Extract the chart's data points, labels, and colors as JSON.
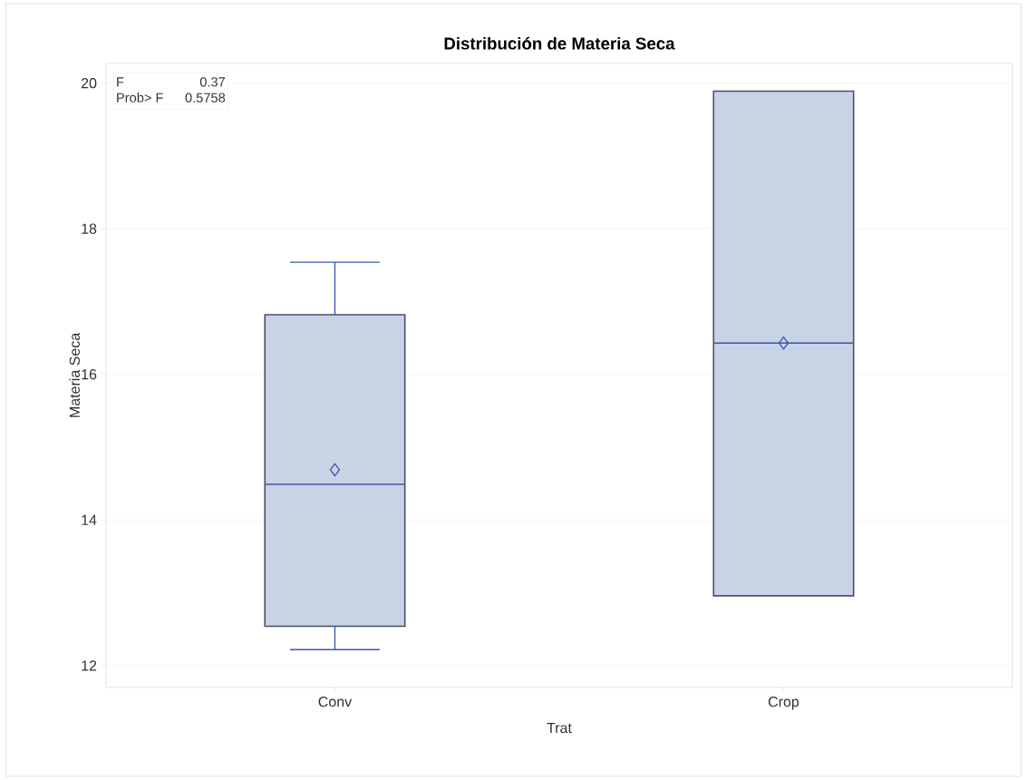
{
  "chart_data": {
    "type": "box",
    "title": "Distribución de Materia Seca",
    "xlabel": "Trat",
    "ylabel": "Materia Seca",
    "categories": [
      "Conv",
      "Crop"
    ],
    "boxes": [
      {
        "low": 12.22,
        "q1": 12.54,
        "median": 14.49,
        "q3": 16.82,
        "high": 17.54,
        "mean": 14.69
      },
      {
        "low": 12.96,
        "q1": 12.96,
        "median": 16.43,
        "q3": 19.89,
        "high": 19.89,
        "mean": 16.43
      }
    ],
    "color": "#c8d3e5",
    "marker": "diamond",
    "grid": "y",
    "ylim": [
      11.7,
      20.27
    ],
    "yticks": [
      12,
      14,
      16,
      18,
      20
    ],
    "annotations": [
      "F",
      "0.37",
      "Prob> F",
      "0.5758"
    ]
  }
}
